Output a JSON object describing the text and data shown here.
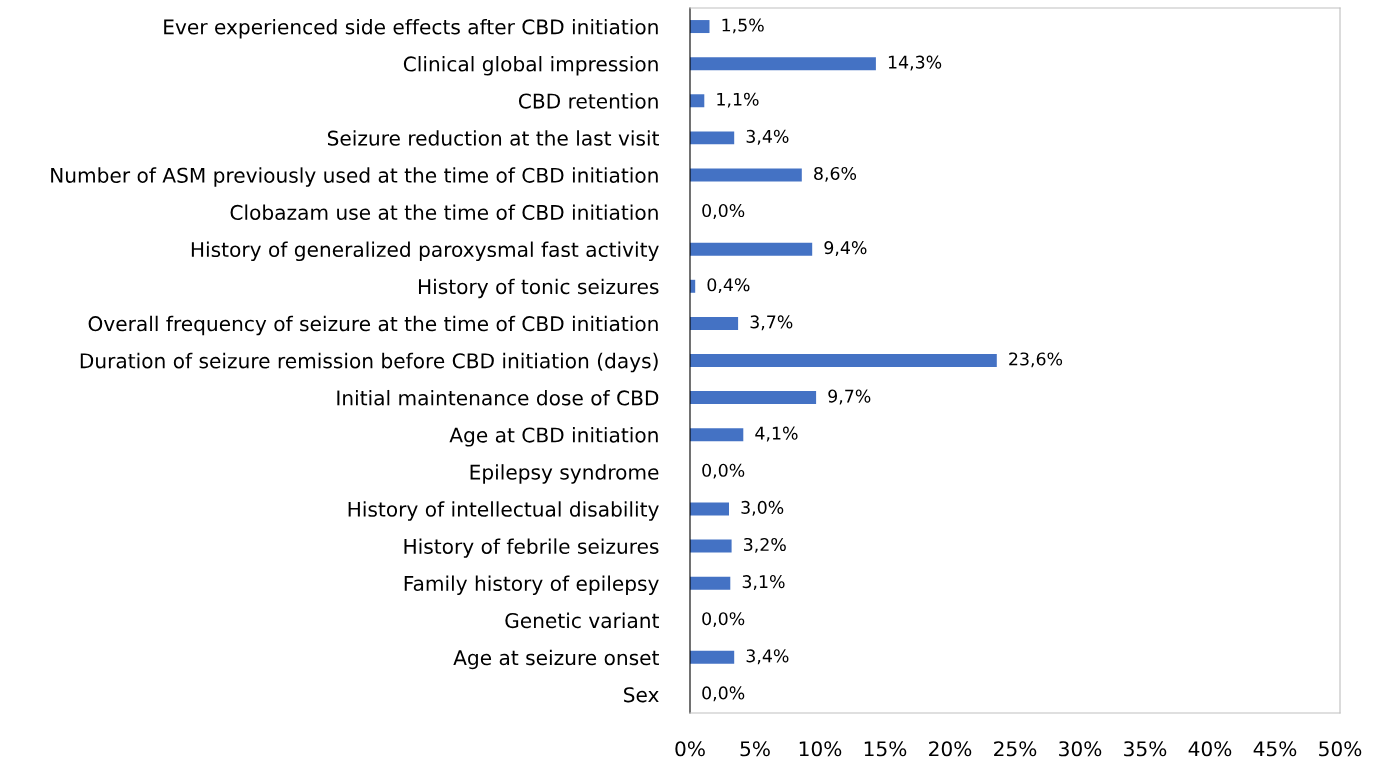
{
  "chart_data": {
    "type": "bar",
    "orientation": "horizontal",
    "color": "#4472c4",
    "categories": [
      "Ever experienced side effects after CBD initiation",
      "Clinical global impression",
      "CBD retention",
      "Seizure reduction at the last visit",
      "Number of ASM previously used at the time of CBD initiation",
      "Clobazam use at the time of CBD initiation",
      "History of generalized paroxysmal fast activity",
      "History of tonic seizures",
      "Overall frequency of seizure at the time of CBD initiation",
      "Duration of seizure remission before CBD initiation (days)",
      "Initial maintenance dose of CBD",
      "Age at CBD initiation",
      "Epilepsy syndrome",
      "History of intellectual disability",
      "History of febrile seizures",
      "Family history of epilepsy",
      "Genetic variant",
      "Age at seizure onset",
      "Sex"
    ],
    "values": [
      1.5,
      14.3,
      1.1,
      3.4,
      8.6,
      0.0,
      9.4,
      0.4,
      3.7,
      23.6,
      9.7,
      4.1,
      0.0,
      3.0,
      3.2,
      3.1,
      0.0,
      3.4,
      0.0
    ],
    "value_labels": [
      "1,5%",
      "14,3%",
      "1,1%",
      "3,4%",
      "8,6%",
      "0,0%",
      "9,4%",
      "0,4%",
      "3,7%",
      "23,6%",
      "9,7%",
      "4,1%",
      "0,0%",
      "3,0%",
      "3,2%",
      "3,1%",
      "0,0%",
      "3,4%",
      "0,0%"
    ],
    "xlim": [
      0,
      50
    ],
    "xticks": [
      {
        "value": 0,
        "label": "0%"
      },
      {
        "value": 5,
        "label": "5%"
      },
      {
        "value": 10,
        "label": "10%"
      },
      {
        "value": 15,
        "label": "15%"
      },
      {
        "value": 20,
        "label": "20%"
      },
      {
        "value": 25,
        "label": "25%"
      },
      {
        "value": 30,
        "label": "30%"
      },
      {
        "value": 35,
        "label": "35%"
      },
      {
        "value": 40,
        "label": "40%"
      },
      {
        "value": 45,
        "label": "45%"
      },
      {
        "value": 50,
        "label": "50%"
      }
    ],
    "grid": false,
    "legend": false
  }
}
